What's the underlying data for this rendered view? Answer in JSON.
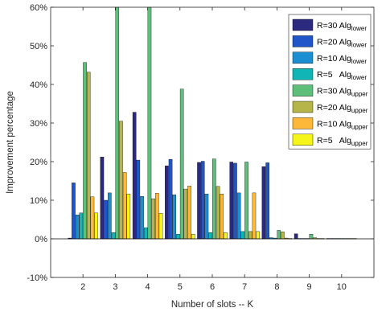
{
  "chart_data": {
    "type": "bar",
    "title": "",
    "xlabel": "Number of slots -- K",
    "ylabel": "Improvement percentage",
    "categories": [
      "2",
      "3",
      "4",
      "5",
      "6",
      "7",
      "8",
      "9",
      "10"
    ],
    "ylim": [
      -10,
      60
    ],
    "yticks": [
      -10,
      0,
      10,
      20,
      30,
      40,
      50,
      60
    ],
    "ytick_labels": [
      "-10%",
      "0%",
      "10%",
      "20%",
      "30%",
      "40%",
      "50%",
      "60%"
    ],
    "grid": false,
    "legend_position": "top-right",
    "series": [
      {
        "name": "R=30 Alg",
        "sub": "lower",
        "color": "#2b2a7e",
        "values": [
          0.2,
          21.2,
          32.8,
          18.9,
          19.8,
          19.9,
          18.7,
          1.3,
          0.1
        ]
      },
      {
        "name": "R=20 Alg",
        "sub": "lower",
        "color": "#1f55c9",
        "values": [
          14.5,
          10.0,
          20.4,
          20.6,
          20.1,
          19.6,
          19.7,
          0.1,
          0.1
        ]
      },
      {
        "name": "R=10 Alg",
        "sub": "lower",
        "color": "#1b8fd2",
        "values": [
          6.2,
          11.9,
          11.0,
          11.4,
          11.6,
          11.9,
          0.3,
          0.1,
          0.1
        ]
      },
      {
        "name": "R=5   Alg",
        "sub": "lower",
        "color": "#12b5b5",
        "values": [
          6.7,
          1.6,
          2.9,
          1.2,
          1.6,
          1.9,
          0.2,
          0.1,
          0.1
        ]
      },
      {
        "name": "R=30 Alg",
        "sub": "upper",
        "color": "#5dbf7a",
        "values": [
          45.7,
          60.0,
          60.0,
          38.8,
          20.7,
          19.9,
          2.2,
          1.2,
          0.1
        ]
      },
      {
        "name": "R=20 Alg",
        "sub": "upper",
        "color": "#b5b54a",
        "values": [
          43.2,
          30.5,
          10.4,
          12.9,
          13.6,
          1.9,
          1.8,
          0.3,
          0.1
        ]
      },
      {
        "name": "R=10 Alg",
        "sub": "upper",
        "color": "#fdb83a",
        "values": [
          10.9,
          17.2,
          11.8,
          13.7,
          11.6,
          11.9,
          0.2,
          0.1,
          0.1
        ]
      },
      {
        "name": "R=5   Alg",
        "sub": "upper",
        "color": "#f5f51a",
        "values": [
          6.7,
          11.6,
          6.6,
          1.2,
          1.6,
          1.9,
          0.1,
          0.1,
          0.1
        ]
      }
    ]
  }
}
